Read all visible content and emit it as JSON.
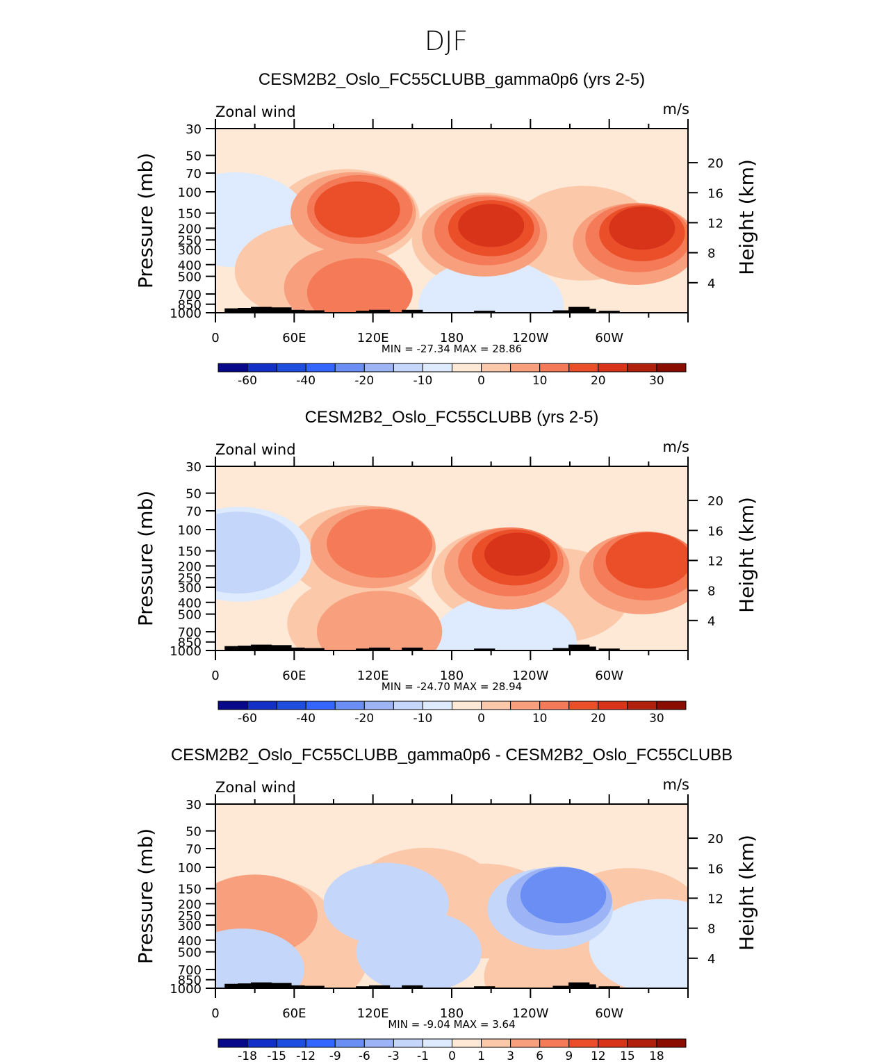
{
  "figure_title": "DJF",
  "chart_data": [
    {
      "type": "contour",
      "title": "CESM2B2_Oslo_FC55CLUBB_gamma0p6 (yrs 2-5)",
      "left_label": "Zonal wind",
      "right_label": "m/s",
      "ylabel": "Pressure (mb)",
      "ylabel_right": "Height (km)",
      "xticks": [
        "0",
        "60E",
        "120E",
        "180",
        "120W",
        "60W"
      ],
      "pressure_ticks": [
        "30",
        "50",
        "70",
        "100",
        "150",
        "200",
        "250",
        "300",
        "400",
        "500",
        "700",
        "850",
        "1000"
      ],
      "height_ticks": [
        "20",
        "16",
        "12",
        "8",
        "4"
      ],
      "stats": {
        "min_label": "MIN =",
        "min": "-27.34",
        "max_label": "MAX =",
        "max": "28.86"
      },
      "colorbar": {
        "colors": [
          "#08088a",
          "#1230c8",
          "#1d4ee0",
          "#3366ff",
          "#6b8ef5",
          "#9cb4f5",
          "#c5d6fb",
          "#deebff",
          "#fee8d6",
          "#fcc8aa",
          "#f8a07e",
          "#f47a58",
          "#ea4f2a",
          "#d8341a",
          "#b0200c",
          "#8a0d00"
        ],
        "labels": [
          "-60",
          "-40",
          "-20",
          "-10",
          "0",
          "10",
          "20",
          "30"
        ]
      },
      "field": [
        {
          "lon": 108,
          "p": 140,
          "level": 4
        },
        {
          "lon": 110,
          "p": 140,
          "level": 3
        },
        {
          "lon": 105,
          "p": 150,
          "level": 2
        },
        {
          "lon": 100,
          "p": 160,
          "level": 1
        },
        {
          "lon": 85,
          "p": 200,
          "level": 0
        },
        {
          "lon": 15,
          "p": 170,
          "level": -1
        },
        {
          "lon": 210,
          "p": 190,
          "level": 5
        },
        {
          "lon": 210,
          "p": 200,
          "level": 4
        },
        {
          "lon": 207,
          "p": 210,
          "level": 3
        },
        {
          "lon": 205,
          "p": 230,
          "level": 2
        },
        {
          "lon": 205,
          "p": 250,
          "level": 1
        },
        {
          "lon": 325,
          "p": 200,
          "level": 5
        },
        {
          "lon": 325,
          "p": 220,
          "level": 4
        },
        {
          "lon": 322,
          "p": 240,
          "level": 3
        },
        {
          "lon": 320,
          "p": 270,
          "level": 2
        },
        {
          "lon": 280,
          "p": 220,
          "level": 1
        },
        {
          "lon": 110,
          "p": 680,
          "level": 3
        },
        {
          "lon": 100,
          "p": 620,
          "level": 2
        },
        {
          "lon": 70,
          "p": 450,
          "level": 1
        },
        {
          "lon": 210,
          "p": 880,
          "level": -1
        },
        {
          "lon": 300,
          "p": 820,
          "level": 0
        }
      ]
    },
    {
      "type": "contour",
      "title": "CESM2B2_Oslo_FC55CLUBB (yrs 2-5)",
      "left_label": "Zonal wind",
      "right_label": "m/s",
      "ylabel": "Pressure (mb)",
      "ylabel_right": "Height (km)",
      "xticks": [
        "0",
        "60E",
        "120E",
        "180",
        "120W",
        "60W"
      ],
      "pressure_ticks": [
        "30",
        "50",
        "70",
        "100",
        "150",
        "200",
        "250",
        "300",
        "400",
        "500",
        "700",
        "850",
        "1000"
      ],
      "height_ticks": [
        "20",
        "16",
        "12",
        "8",
        "4"
      ],
      "stats": {
        "min_label": "MIN =",
        "min": "-24.70",
        "max_label": "MAX =",
        "max": "28.94"
      },
      "colorbar": {
        "colors": [
          "#08088a",
          "#1230c8",
          "#1d4ee0",
          "#3366ff",
          "#6b8ef5",
          "#9cb4f5",
          "#c5d6fb",
          "#deebff",
          "#fee8d6",
          "#fcc8aa",
          "#f8a07e",
          "#f47a58",
          "#ea4f2a",
          "#d8341a",
          "#b0200c",
          "#8a0d00"
        ],
        "labels": [
          "-60",
          "-40",
          "-20",
          "-10",
          "0",
          "10",
          "20",
          "30"
        ]
      },
      "field": [
        {
          "lon": 125,
          "p": 130,
          "level": 3
        },
        {
          "lon": 120,
          "p": 140,
          "level": 2
        },
        {
          "lon": 110,
          "p": 155,
          "level": 1
        },
        {
          "lon": 100,
          "p": 180,
          "level": 0
        },
        {
          "lon": 18,
          "p": 160,
          "level": -1
        },
        {
          "lon": 17,
          "p": 155,
          "level": -2
        },
        {
          "lon": 230,
          "p": 160,
          "level": 5
        },
        {
          "lon": 228,
          "p": 170,
          "level": 4
        },
        {
          "lon": 225,
          "p": 185,
          "level": 3
        },
        {
          "lon": 222,
          "p": 210,
          "level": 2
        },
        {
          "lon": 220,
          "p": 240,
          "level": 1
        },
        {
          "lon": 330,
          "p": 180,
          "level": 4
        },
        {
          "lon": 328,
          "p": 200,
          "level": 3
        },
        {
          "lon": 325,
          "p": 230,
          "level": 2
        },
        {
          "lon": 260,
          "p": 350,
          "level": 1
        },
        {
          "lon": 125,
          "p": 700,
          "level": 2
        },
        {
          "lon": 110,
          "p": 600,
          "level": 1
        },
        {
          "lon": 220,
          "p": 860,
          "level": -1
        },
        {
          "lon": 310,
          "p": 820,
          "level": 0
        }
      ]
    },
    {
      "type": "contour",
      "title": "CESM2B2_Oslo_FC55CLUBB_gamma0p6 - CESM2B2_Oslo_FC55CLUBB",
      "left_label": "Zonal wind",
      "right_label": "m/s",
      "ylabel": "Pressure (mb)",
      "ylabel_right": "Height (km)",
      "xticks": [
        "0",
        "60E",
        "120E",
        "180",
        "120W",
        "60W"
      ],
      "pressure_ticks": [
        "30",
        "50",
        "70",
        "100",
        "150",
        "200",
        "250",
        "300",
        "400",
        "500",
        "700",
        "850",
        "1000"
      ],
      "height_ticks": [
        "20",
        "16",
        "12",
        "8",
        "4"
      ],
      "stats": {
        "min_label": "MIN =",
        "min": "-9.04",
        "max_label": "MAX =",
        "max": "3.64"
      },
      "colorbar": {
        "colors": [
          "#08088a",
          "#1230c8",
          "#1d4ee0",
          "#3366ff",
          "#6b8ef5",
          "#9cb4f5",
          "#c5d6fb",
          "#deebff",
          "#fee8d6",
          "#fcc8aa",
          "#f8a07e",
          "#f47a58",
          "#ea4f2a",
          "#d8341a",
          "#b0200c",
          "#8a0d00"
        ],
        "labels": [
          "-18",
          "-15",
          "-12",
          "-9",
          "-6",
          "-3",
          "-1",
          "0",
          "1",
          "3",
          "6",
          "9",
          "12",
          "15",
          "18"
        ]
      },
      "field": [
        {
          "lon": 265,
          "p": 170,
          "level": -4
        },
        {
          "lon": 262,
          "p": 190,
          "level": -3
        },
        {
          "lon": 255,
          "p": 220,
          "level": -2
        },
        {
          "lon": 250,
          "p": 260,
          "level": -1
        },
        {
          "lon": 140,
          "p": 300,
          "level": -1
        },
        {
          "lon": 130,
          "p": 200,
          "level": -2
        },
        {
          "lon": 155,
          "p": 500,
          "level": -2
        },
        {
          "lon": 30,
          "p": 250,
          "level": 2
        },
        {
          "lon": 35,
          "p": 300,
          "level": 1
        },
        {
          "lon": 60,
          "p": 600,
          "level": 1
        },
        {
          "lon": 205,
          "p": 230,
          "level": 1
        },
        {
          "lon": 160,
          "p": 170,
          "level": 1
        },
        {
          "lon": 315,
          "p": 250,
          "level": 1
        },
        {
          "lon": 260,
          "p": 800,
          "level": 1
        },
        {
          "lon": 20,
          "p": 700,
          "level": -2
        },
        {
          "lon": 340,
          "p": 450,
          "level": -1
        }
      ]
    }
  ]
}
